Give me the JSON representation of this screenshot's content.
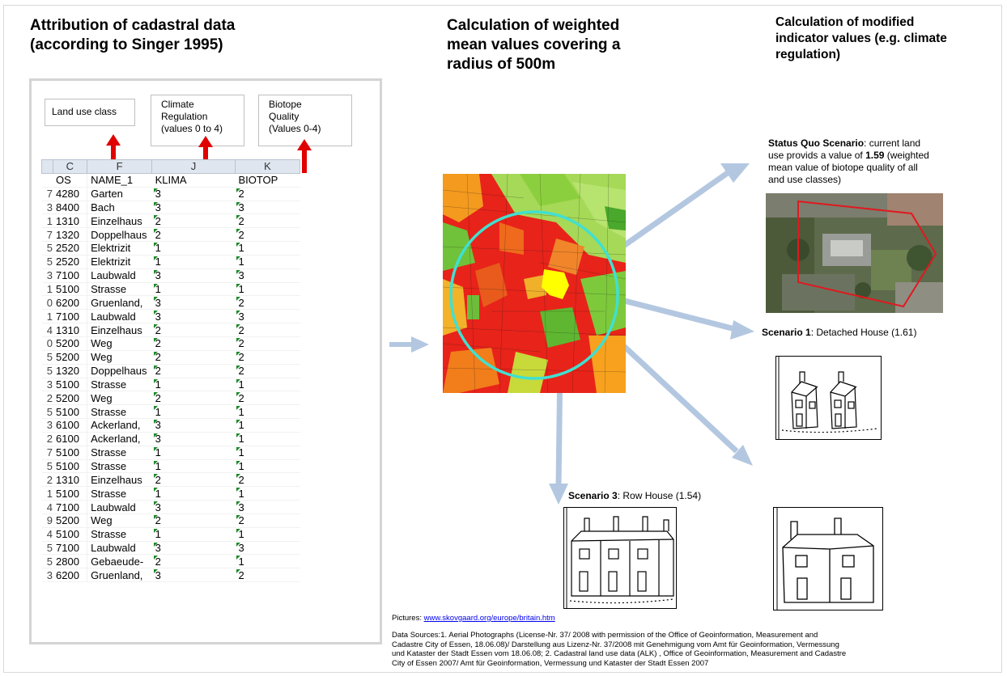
{
  "titles": {
    "left": [
      "Attribution of cadastral data",
      "(according to Singer 1995)"
    ],
    "middle": [
      "Calculation of weighted",
      "mean values covering a",
      "radius of 500m"
    ],
    "right": [
      "Calculation of modified",
      "indicator values (e.g. climate",
      "regulation)"
    ]
  },
  "labels": {
    "land_use": "Land use class",
    "climate": [
      "Climate",
      "Regulation",
      "(values 0 to 4)"
    ],
    "biotope": [
      "Biotope",
      "Quality",
      "(Values 0-4)"
    ]
  },
  "sheet": {
    "col_letters": [
      "",
      "C",
      "F",
      "J",
      "K"
    ],
    "headers": [
      "",
      "OS",
      "NAME_1",
      "KLIMA",
      "BIOTOP"
    ],
    "rows": [
      [
        "7",
        "4280",
        "Garten",
        "3",
        "2"
      ],
      [
        "3",
        "8400",
        "Bach",
        "3",
        "3"
      ],
      [
        "1",
        "1310",
        "Einzelhaus",
        "2",
        "2"
      ],
      [
        "7",
        "1320",
        "Doppelhaus",
        "2",
        "2"
      ],
      [
        "5",
        "2520",
        "Elektrizit",
        "1",
        "1"
      ],
      [
        "5",
        "2520",
        "Elektrizit",
        "1",
        "1"
      ],
      [
        "3",
        "7100",
        "Laubwald",
        "3",
        "3"
      ],
      [
        "1",
        "5100",
        "Strasse",
        "1",
        "1"
      ],
      [
        "0",
        "6200",
        "Gruenland,",
        "3",
        "2"
      ],
      [
        "1",
        "7100",
        "Laubwald",
        "3",
        "3"
      ],
      [
        "4",
        "1310",
        "Einzelhaus",
        "2",
        "2"
      ],
      [
        "0",
        "5200",
        "Weg",
        "2",
        "2"
      ],
      [
        "5",
        "5200",
        "Weg",
        "2",
        "2"
      ],
      [
        "5",
        "1320",
        "Doppelhaus",
        "2",
        "2"
      ],
      [
        "3",
        "5100",
        "Strasse",
        "1",
        "1"
      ],
      [
        "2",
        "5200",
        "Weg",
        "2",
        "2"
      ],
      [
        "5",
        "5100",
        "Strasse",
        "1",
        "1"
      ],
      [
        "3",
        "6100",
        "Ackerland,",
        "3",
        "1"
      ],
      [
        "2",
        "6100",
        "Ackerland,",
        "3",
        "1"
      ],
      [
        "7",
        "5100",
        "Strasse",
        "1",
        "1"
      ],
      [
        "5",
        "5100",
        "Strasse",
        "1",
        "1"
      ],
      [
        "2",
        "1310",
        "Einzelhaus",
        "2",
        "2"
      ],
      [
        "1",
        "5100",
        "Strasse",
        "1",
        "1"
      ],
      [
        "4",
        "7100",
        "Laubwald",
        "3",
        "3"
      ],
      [
        "9",
        "5200",
        "Weg",
        "2",
        "2"
      ],
      [
        "4",
        "5100",
        "Strasse",
        "1",
        "1"
      ],
      [
        "5",
        "7100",
        "Laubwald",
        "3",
        "3"
      ],
      [
        "5",
        "2800",
        "Gebaeude-",
        "2",
        "1"
      ],
      [
        "3",
        "6200",
        "Gruenland,",
        "3",
        "2"
      ]
    ]
  },
  "status_quo": {
    "bold": "Status Quo Scenario",
    "text1": ": current land",
    "text2": "use provids a value of ",
    "value": "1.59",
    "text3": " (weighted",
    "text4": "mean value of biotope quality of all",
    "text5": "and use classes)"
  },
  "scenario1": {
    "bold": "Scenario 1",
    "text": ": Detached House (1.61)"
  },
  "scenario3": {
    "bold": "Scenario 3",
    "text": ": Row House (1.54)"
  },
  "sources": {
    "pictures_label": "Pictures: ",
    "pictures_link": "www.skovgaard.org/europe/britain.htm",
    "lines": [
      "Data Sources:1.  Aerial Photographs (License-Nr. 37/ 2008  with permission of the Office of  Geoinformation, Measurement and",
      "Cadastre City of Essen, 18.06.08)/ Darstellung aus Lizenz-Nr. 37/2008 mit Genehmigung vom Amt für Geoinformation, Vermessung",
      "und Kataster der Stadt Essen vom 18.06.08; 2. Cadastral land use data (ALK) , Office of  Geoinformation, Measurement and Cadastre",
      "City of Essen  2007/ Amt für Geoinformation, Vermessung und Kataster der Stadt Essen 2007"
    ]
  },
  "colors": {
    "arrow_blue": "#b3c7e0",
    "arrow_red": "#e00000",
    "circle": "#40e0d0",
    "map_yellow": "#ffff00"
  }
}
